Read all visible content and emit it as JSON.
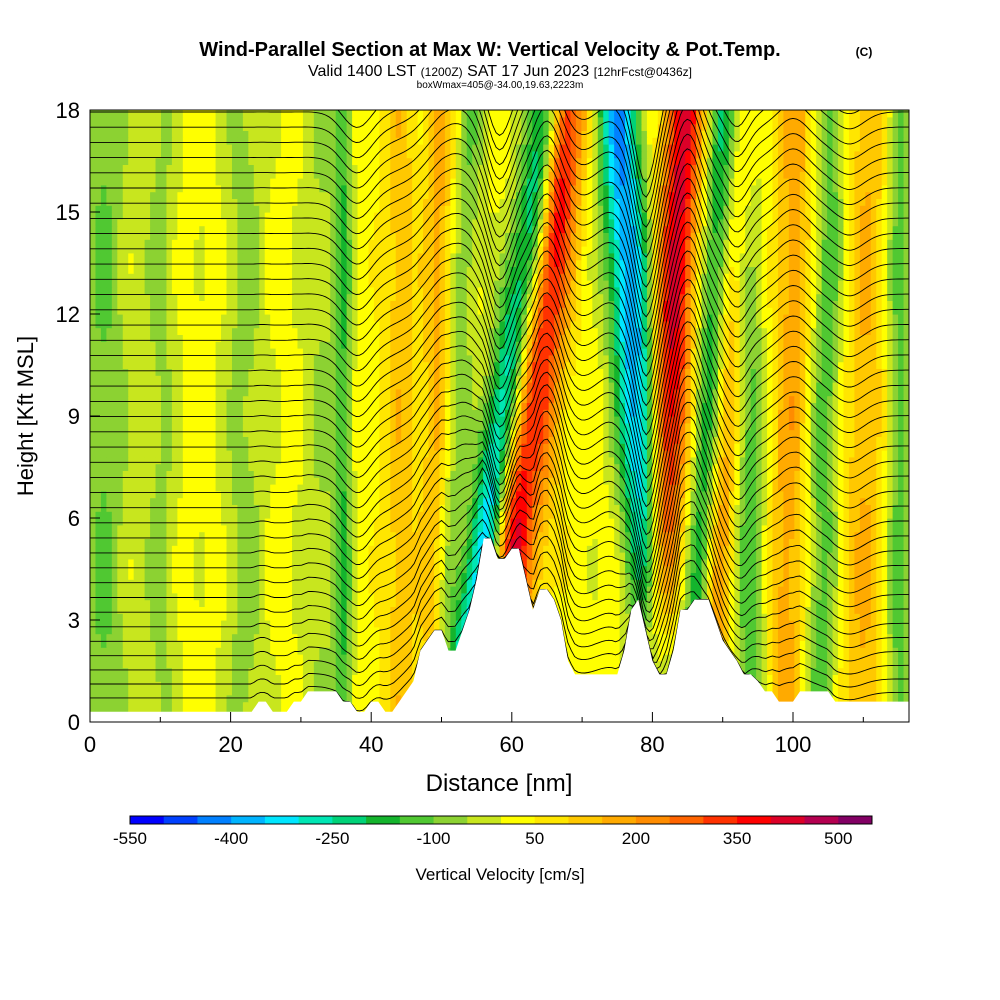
{
  "header": {
    "title": "Wind-Parallel Section at Max W: Vertical Velocity & Pot.Temp.",
    "copyright": "(C)",
    "valid_main": "Valid 1400 LST",
    "valid_utc": "(1200Z)",
    "valid_date": "SAT 17 Jun 2023",
    "forecast": "[12hrFcst@0436z]",
    "box_info": "boxWmax=405@-34.00,19.63,2223m"
  },
  "chart_data": {
    "type": "heatmap",
    "title": "Wind-Parallel Section at Max W: Vertical Velocity & Pot.Temp.",
    "xlabel": "Distance [nm]",
    "ylabel": "Height [Kft MSL]",
    "xlim": [
      0,
      116.5
    ],
    "ylim": [
      0,
      18
    ],
    "x_ticks": [
      0,
      20,
      40,
      60,
      80,
      100
    ],
    "y_ticks": [
      0,
      3,
      6,
      9,
      12,
      15,
      18
    ],
    "color_scale": {
      "label": "Vertical Velocity [cm/s]",
      "min": -550,
      "max": 550,
      "step": 50,
      "tick_labels": [
        "-550",
        "-400",
        "-250",
        "-100",
        "50",
        "200",
        "350",
        "500"
      ],
      "colors": [
        "#0000ff",
        "#0040ff",
        "#0080ff",
        "#00b4ff",
        "#00e6ff",
        "#00e6b4",
        "#00d278",
        "#14b42d",
        "#50c832",
        "#8cd232",
        "#c8e61e",
        "#ffff00",
        "#ffe600",
        "#ffc800",
        "#ffaa00",
        "#ff8c00",
        "#ff6400",
        "#ff3200",
        "#ff0000",
        "#dc0028",
        "#b40050",
        "#820064"
      ]
    },
    "updraft_max": {
      "value_cm_s": 405,
      "x_nm": 81,
      "height_kft": 7.3
    },
    "w_field": {
      "background_cm_s": 20,
      "features": [
        {
          "x_base_nm": 57,
          "h_base_kft": 6.0,
          "tilt_nm_per_kft": 0.7,
          "value_cm_s": -460,
          "width_nm": 2.8
        },
        {
          "x_base_nm": 62,
          "h_base_kft": 3.0,
          "tilt_nm_per_kft": 0.2,
          "value_cm_s": -180,
          "width_nm": 2.4
        },
        {
          "x_base_nm": 59,
          "h_base_kft": 5.0,
          "tilt_nm_per_kft": 0.6,
          "value_cm_s": 240,
          "width_nm": 3.0
        },
        {
          "x_base_nm": 62,
          "h_base_kft": 6.0,
          "tilt_nm_per_kft": 0.4,
          "value_cm_s": 380,
          "width_nm": 3.4
        },
        {
          "x_base_nm": 80,
          "h_base_kft": 3.0,
          "tilt_nm_per_kft": -0.33,
          "value_cm_s": -420,
          "width_nm": 3.0
        },
        {
          "x_base_nm": 81,
          "h_base_kft": 4.0,
          "tilt_nm_per_kft": 0.25,
          "value_cm_s": 400,
          "width_nm": 2.8
        },
        {
          "x_base_nm": 87,
          "h_base_kft": 5.5,
          "tilt_nm_per_kft": 0.25,
          "value_cm_s": -220,
          "width_nm": 2.0
        },
        {
          "x_base_nm": 89,
          "h_base_kft": 3.5,
          "tilt_nm_per_kft": 0.3,
          "value_cm_s": 180,
          "width_nm": 2.2
        },
        {
          "x_base_nm": 94,
          "h_base_kft": 3.0,
          "tilt_nm_per_kft": -0.06,
          "value_cm_s": -160,
          "width_nm": 2.2
        },
        {
          "x_base_nm": 99,
          "h_base_kft": 3.0,
          "tilt_nm_per_kft": 0.1,
          "value_cm_s": 160,
          "width_nm": 2.6
        },
        {
          "x_base_nm": 104,
          "h_base_kft": 3.0,
          "tilt_nm_per_kft": 0.1,
          "value_cm_s": -150,
          "width_nm": 2.2
        },
        {
          "x_base_nm": 110,
          "h_base_kft": 4.0,
          "tilt_nm_per_kft": 0.05,
          "value_cm_s": 130,
          "width_nm": 3.0
        },
        {
          "x_base_nm": 115,
          "h_base_kft": 5.0,
          "tilt_nm_per_kft": 0.0,
          "value_cm_s": -140,
          "width_nm": 1.8
        },
        {
          "x_base_nm": 2,
          "h_base_kft": 2.0,
          "tilt_nm_per_kft": 0.0,
          "value_cm_s": -120,
          "width_nm": 3.5
        },
        {
          "x_base_nm": 10,
          "h_base_kft": 2.0,
          "tilt_nm_per_kft": 0.0,
          "value_cm_s": -80,
          "width_nm": 2.5
        },
        {
          "x_base_nm": 22,
          "h_base_kft": 2.0,
          "tilt_nm_per_kft": 0.0,
          "value_cm_s": -90,
          "width_nm": 3.0
        },
        {
          "x_base_nm": 33,
          "h_base_kft": 2.0,
          "tilt_nm_per_kft": 0.0,
          "value_cm_s": -70,
          "width_nm": 3.0
        },
        {
          "x_base_nm": 36,
          "h_base_kft": 1.5,
          "tilt_nm_per_kft": 0.0,
          "value_cm_s": -150,
          "width_nm": 1.2
        },
        {
          "x_base_nm": 44,
          "h_base_kft": 3.0,
          "tilt_nm_per_kft": 0.0,
          "value_cm_s": 110,
          "width_nm": 2.5
        },
        {
          "x_base_nm": 49,
          "h_base_kft": 3.0,
          "tilt_nm_per_kft": 0.05,
          "value_cm_s": 150,
          "width_nm": 2.0
        },
        {
          "x_base_nm": 51,
          "h_base_kft": 6.0,
          "tilt_nm_per_kft": 0.3,
          "value_cm_s": -110,
          "width_nm": 2.0
        }
      ]
    },
    "terrain_kft": {
      "x": [
        0,
        23,
        24,
        25,
        26,
        27,
        28,
        29,
        30,
        31,
        32,
        33,
        34,
        35,
        36,
        37,
        38,
        39,
        40,
        41,
        42,
        43,
        44,
        45,
        46,
        47,
        48,
        49,
        50,
        51,
        52,
        53,
        54,
        55,
        56,
        57,
        58,
        59,
        60,
        61,
        62,
        63,
        64,
        65,
        66,
        67,
        68,
        69,
        70,
        71,
        72,
        73,
        74,
        75,
        76,
        77,
        78,
        79,
        80,
        81,
        82,
        83,
        84,
        85,
        86,
        87,
        88,
        89,
        90,
        91,
        92,
        93,
        94,
        95,
        96,
        97,
        98,
        99,
        100,
        101,
        102,
        103,
        104,
        105,
        106,
        107,
        108,
        109,
        116.5
      ],
      "h": [
        0.3,
        0.3,
        0.6,
        0.6,
        0.3,
        0.3,
        0.3,
        0.6,
        0.6,
        0.9,
        0.9,
        0.9,
        0.9,
        0.9,
        0.6,
        0.6,
        0.3,
        0.3,
        0.6,
        0.6,
        0.3,
        0.3,
        0.6,
        0.9,
        1.2,
        2.1,
        2.4,
        2.7,
        2.7,
        2.1,
        2.1,
        2.7,
        3.3,
        4.2,
        5.4,
        5.4,
        4.8,
        4.8,
        5.1,
        5.1,
        4.2,
        3.3,
        3.9,
        3.9,
        3.6,
        3.0,
        1.8,
        1.4,
        1.4,
        1.4,
        1.4,
        1.4,
        1.4,
        1.4,
        2.1,
        3.3,
        3.6,
        2.7,
        1.8,
        1.4,
        1.4,
        2.1,
        3.3,
        3.3,
        3.6,
        3.6,
        3.6,
        3.0,
        2.4,
        2.1,
        1.8,
        1.4,
        1.4,
        1.2,
        0.9,
        0.9,
        0.6,
        0.6,
        0.6,
        0.9,
        0.9,
        0.9,
        0.9,
        0.9,
        0.6,
        0.6,
        0.6,
        0.6,
        0.6
      ]
    },
    "theta_contours": {
      "count": 41,
      "surface_kft": 0.9,
      "spacing_kft": 0.44,
      "wave_amplitude_kft": [
        {
          "x_nm": 38,
          "amp": -0.9,
          "width_nm": 3
        },
        {
          "x_nm": 52,
          "amp": 1.4,
          "width_nm": 5
        },
        {
          "x_nm": 58,
          "amp": -1.6,
          "width_nm": 2.5
        },
        {
          "x_nm": 65,
          "amp": 1.8,
          "width_nm": 3
        },
        {
          "x_nm": 74,
          "amp": 0.6,
          "width_nm": 3
        },
        {
          "x_nm": 79,
          "amp": -2.6,
          "width_nm": 2.2
        },
        {
          "x_nm": 85,
          "amp": 1.9,
          "width_nm": 2.5
        },
        {
          "x_nm": 92,
          "amp": -0.9,
          "width_nm": 2.2
        },
        {
          "x_nm": 100,
          "amp": 0.7,
          "width_nm": 3
        },
        {
          "x_nm": 108,
          "amp": -0.5,
          "width_nm": 3
        }
      ]
    }
  }
}
